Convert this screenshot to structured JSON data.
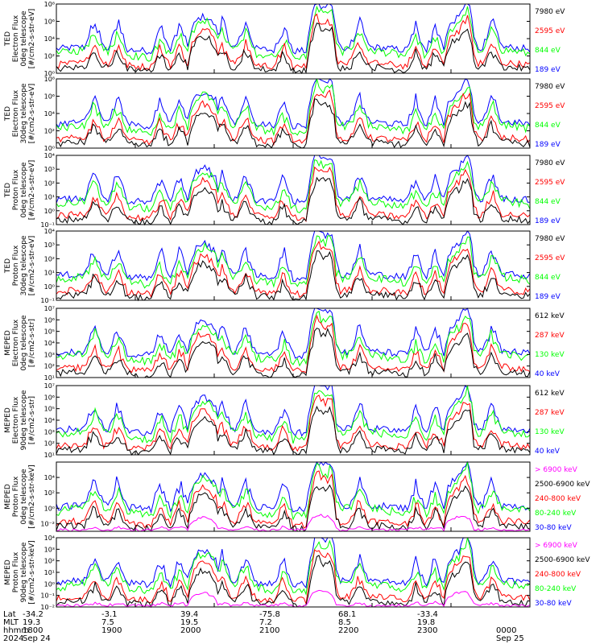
{
  "colors": {
    "blue": "#0000ff",
    "red": "#ff0000",
    "green": "#00ff00",
    "black": "#000000",
    "magenta": "#ff00ff"
  },
  "panels": [
    {
      "ylabel": [
        "TED",
        "Electron Flux",
        "0deg telescope",
        "[#/cm2-s-str-eV]"
      ],
      "yticks": [
        {
          "exp": 0,
          "label": "10⁰"
        },
        {
          "exp": 2,
          "label": "10²"
        },
        {
          "exp": 4,
          "label": "10⁴"
        },
        {
          "exp": 6,
          "label": "10⁶"
        },
        {
          "exp": 8,
          "label": "10⁸"
        }
      ],
      "ylim_exp": [
        0,
        8
      ],
      "legend": [
        {
          "text": "7980 eV",
          "color": "black"
        },
        {
          "text": "2595 eV",
          "color": "red"
        },
        {
          "text": "844 eV",
          "color": "green"
        },
        {
          "text": "189 eV",
          "color": "blue"
        }
      ]
    },
    {
      "ylabel": [
        "TED",
        "Electron Flux",
        "30deg telescope",
        "[#/cm2-s-str-eV]"
      ],
      "yticks": [
        {
          "exp": 0,
          "label": "10⁰"
        },
        {
          "exp": 2,
          "label": "10²"
        },
        {
          "exp": 4,
          "label": "10⁴"
        },
        {
          "exp": 6,
          "label": "10⁶"
        },
        {
          "exp": 8,
          "label": "10⁸"
        }
      ],
      "ylim_exp": [
        0,
        8
      ],
      "legend": [
        {
          "text": "7980 eV",
          "color": "black"
        },
        {
          "text": "2595 eV",
          "color": "red"
        },
        {
          "text": "844 eV",
          "color": "green"
        },
        {
          "text": "189 eV",
          "color": "blue"
        }
      ]
    },
    {
      "ylabel": [
        "TED",
        "Proton Flux",
        "0deg telescope",
        "[#/cm2-s-str-eV]"
      ],
      "yticks": [
        {
          "exp": -1,
          "label": "10⁻¹"
        },
        {
          "exp": 0,
          "label": "10⁰"
        },
        {
          "exp": 1,
          "label": "10¹"
        },
        {
          "exp": 2,
          "label": "10²"
        },
        {
          "exp": 3,
          "label": "10³"
        },
        {
          "exp": 4,
          "label": "10⁴"
        }
      ],
      "ylim_exp": [
        -1,
        4
      ],
      "legend": [
        {
          "text": "7980 eV",
          "color": "black"
        },
        {
          "text": "2595 eV",
          "color": "red"
        },
        {
          "text": "844 eV",
          "color": "green"
        },
        {
          "text": "189 eV",
          "color": "blue"
        }
      ]
    },
    {
      "ylabel": [
        "TED",
        "Proton Flux",
        "30deg telescope",
        "[#/cm2-s-str-eV]"
      ],
      "yticks": [
        {
          "exp": -1,
          "label": "10⁻¹"
        },
        {
          "exp": 0,
          "label": "10⁰"
        },
        {
          "exp": 1,
          "label": "10¹"
        },
        {
          "exp": 2,
          "label": "10²"
        },
        {
          "exp": 3,
          "label": "10³"
        },
        {
          "exp": 4,
          "label": "10⁴"
        }
      ],
      "ylim_exp": [
        -1,
        4
      ],
      "legend": [
        {
          "text": "7980 eV",
          "color": "black"
        },
        {
          "text": "2595 eV",
          "color": "red"
        },
        {
          "text": "844 eV",
          "color": "green"
        },
        {
          "text": "189 eV",
          "color": "blue"
        }
      ]
    },
    {
      "ylabel": [
        "MEPED",
        "Electron Flux",
        "0deg telescope",
        "[#/cm2-s-str]"
      ],
      "yticks": [
        {
          "exp": 1,
          "label": "10¹"
        },
        {
          "exp": 2,
          "label": "10²"
        },
        {
          "exp": 3,
          "label": "10³"
        },
        {
          "exp": 4,
          "label": "10⁴"
        },
        {
          "exp": 5,
          "label": "10⁵"
        },
        {
          "exp": 6,
          "label": "10⁶"
        },
        {
          "exp": 7,
          "label": "10⁷"
        }
      ],
      "ylim_exp": [
        1,
        7
      ],
      "legend": [
        {
          "text": "612 keV",
          "color": "black"
        },
        {
          "text": "287 keV",
          "color": "red"
        },
        {
          "text": "130 keV",
          "color": "green"
        },
        {
          "text": "40 keV",
          "color": "blue"
        }
      ]
    },
    {
      "ylabel": [
        "MEPED",
        "Electron Flux",
        "90deg telescope",
        "[#/cm2-s-str]"
      ],
      "yticks": [
        {
          "exp": 1,
          "label": "10¹"
        },
        {
          "exp": 2,
          "label": "10²"
        },
        {
          "exp": 3,
          "label": "10³"
        },
        {
          "exp": 4,
          "label": "10⁴"
        },
        {
          "exp": 5,
          "label": "10⁵"
        },
        {
          "exp": 6,
          "label": "10⁶"
        },
        {
          "exp": 7,
          "label": "10⁷"
        }
      ],
      "ylim_exp": [
        1,
        7
      ],
      "legend": [
        {
          "text": "612 keV",
          "color": "black"
        },
        {
          "text": "287 keV",
          "color": "red"
        },
        {
          "text": "130 keV",
          "color": "green"
        },
        {
          "text": "40 keV",
          "color": "blue"
        }
      ]
    },
    {
      "ylabel": [
        "MEPED",
        "Proton Flux",
        "0deg telescope",
        "[#/cm2-s-str-keV]"
      ],
      "yticks": [
        {
          "exp": -2,
          "label": "10⁻²"
        },
        {
          "exp": 0,
          "label": "10⁰"
        },
        {
          "exp": 2,
          "label": "10²"
        },
        {
          "exp": 4,
          "label": "10⁴"
        }
      ],
      "ylim_exp": [
        -3,
        6
      ],
      "legend": [
        {
          "text": "> 6900 keV",
          "color": "magenta"
        },
        {
          "text": "2500-6900 keV",
          "color": "black"
        },
        {
          "text": "240-800 keV",
          "color": "red"
        },
        {
          "text": "80-240 keV",
          "color": "green"
        },
        {
          "text": "30-80 keV",
          "color": "blue"
        }
      ]
    },
    {
      "ylabel": [
        "MEPED",
        "Proton Flux",
        "90deg telescope",
        "[#/cm2-s-str-keV]"
      ],
      "yticks": [
        {
          "exp": -2,
          "label": "10⁻²"
        },
        {
          "exp": -1,
          "label": "10⁻¹"
        },
        {
          "exp": 0,
          "label": "10⁰"
        },
        {
          "exp": 1,
          "label": "10¹"
        },
        {
          "exp": 2,
          "label": "10²"
        },
        {
          "exp": 3,
          "label": "10³"
        },
        {
          "exp": 4,
          "label": "10⁴"
        }
      ],
      "ylim_exp": [
        -2,
        4
      ],
      "legend": [
        {
          "text": "> 6900 keV",
          "color": "magenta"
        },
        {
          "text": "2500-6900 keV",
          "color": "black"
        },
        {
          "text": "240-800 keV",
          "color": "red"
        },
        {
          "text": "80-240 keV",
          "color": "green"
        },
        {
          "text": "30-80 keV",
          "color": "blue"
        }
      ]
    }
  ],
  "footer": {
    "row_labels": [
      "Lat",
      "MLT",
      "hhmm",
      "2024"
    ],
    "columns": [
      {
        "lat": "-34.2",
        "mlt": "19.3",
        "hhmm": "1800",
        "date": "Sep 24"
      },
      {
        "lat": "-3.1",
        "mlt": "7.5",
        "hhmm": "1900",
        "date": ""
      },
      {
        "lat": "39.4",
        "mlt": "19.5",
        "hhmm": "2000",
        "date": ""
      },
      {
        "lat": "-75.8",
        "mlt": "7.2",
        "hhmm": "2100",
        "date": ""
      },
      {
        "lat": "68.1",
        "mlt": "8.5",
        "hhmm": "2200",
        "date": ""
      },
      {
        "lat": "-33.4",
        "mlt": "19.8",
        "hhmm": "2300",
        "date": ""
      },
      {
        "lat": "",
        "mlt": "",
        "hhmm": "0000",
        "date": "Sep 25"
      }
    ]
  },
  "chart_data": {
    "type": "line",
    "x_axis": "hhmm",
    "x_range": [
      "1800",
      "0000"
    ],
    "y_scale": "log",
    "panel_count": 8,
    "series_per_panel": [
      [
        "7980 eV",
        "2595 eV",
        "844 eV",
        "189 eV"
      ],
      [
        "7980 eV",
        "2595 eV",
        "844 eV",
        "189 eV"
      ],
      [
        "7980 eV",
        "2595 eV",
        "844 eV",
        "189 eV"
      ],
      [
        "7980 eV",
        "2595 eV",
        "844 eV",
        "189 eV"
      ],
      [
        "612 keV",
        "287 keV",
        "130 keV",
        "40 keV"
      ],
      [
        "612 keV",
        "287 keV",
        "130 keV",
        "40 keV"
      ],
      [
        "> 6900 keV",
        "2500-6900 keV",
        "240-800 keV",
        "80-240 keV",
        "30-80 keV"
      ],
      [
        "> 6900 keV",
        "2500-6900 keV",
        "240-800 keV",
        "80-240 keV",
        "30-80 keV"
      ]
    ]
  }
}
